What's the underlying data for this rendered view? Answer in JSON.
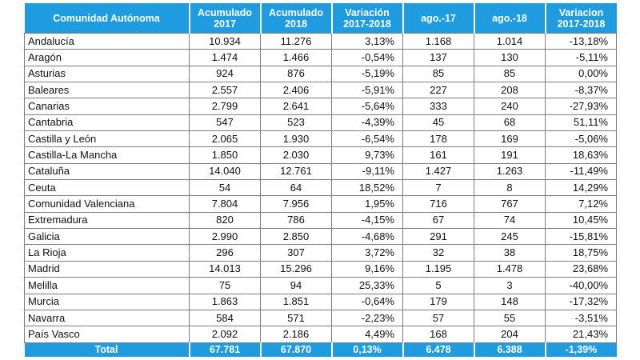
{
  "header": {
    "region": [
      "Comunidad Autónoma"
    ],
    "acum2017": [
      "Acumulado",
      "2017"
    ],
    "acum2018": [
      "Acumulado",
      "2018"
    ],
    "var_acum": [
      "Variación",
      "2017-2018"
    ],
    "ago17": [
      "ago.-17"
    ],
    "ago18": [
      "ago.-18"
    ],
    "var_ago": [
      "Variacion",
      "2017-2018"
    ]
  },
  "rows": [
    [
      "Andalucía",
      "10.934",
      "11.276",
      "3,13%",
      "1.168",
      "1.014",
      "-13,18%"
    ],
    [
      "Aragón",
      "1.474",
      "1.466",
      "-0,54%",
      "137",
      "130",
      "-5,11%"
    ],
    [
      "Asturias",
      "924",
      "876",
      "-5,19%",
      "85",
      "85",
      "0,00%"
    ],
    [
      "Baleares",
      "2.557",
      "2.406",
      "-5,91%",
      "227",
      "208",
      "-8,37%"
    ],
    [
      "Canarias",
      "2.799",
      "2.641",
      "-5,64%",
      "333",
      "240",
      "-27,93%"
    ],
    [
      "Cantabria",
      "547",
      "523",
      "-4,39%",
      "45",
      "68",
      "51,11%"
    ],
    [
      "Castilla y León",
      "2.065",
      "1.930",
      "-6,54%",
      "178",
      "169",
      "-5,06%"
    ],
    [
      "Castilla-La Mancha",
      "1.850",
      "2.030",
      "9,73%",
      "161",
      "191",
      "18,63%"
    ],
    [
      "Cataluña",
      "14.040",
      "12.761",
      "-9,11%",
      "1.427",
      "1.263",
      "-11,49%"
    ],
    [
      "Ceuta",
      "54",
      "64",
      "18,52%",
      "7",
      "8",
      "14,29%"
    ],
    [
      "Comunidad Valenciana",
      "7.804",
      "7.956",
      "1,95%",
      "716",
      "767",
      "7,12%"
    ],
    [
      "Extremadura",
      "820",
      "786",
      "-4,15%",
      "67",
      "74",
      "10,45%"
    ],
    [
      "Galicia",
      "2.990",
      "2.850",
      "-4,68%",
      "291",
      "245",
      "-15,81%"
    ],
    [
      "La Rioja",
      "296",
      "307",
      "3,72%",
      "32",
      "38",
      "18,75%"
    ],
    [
      "Madrid",
      "14.013",
      "15.296",
      "9,16%",
      "1.195",
      "1.478",
      "23,68%"
    ],
    [
      "Melilla",
      "75",
      "94",
      "25,33%",
      "5",
      "3",
      "-40,00%"
    ],
    [
      "Murcia",
      "1.863",
      "1.851",
      "-0,64%",
      "179",
      "148",
      "-17,32%"
    ],
    [
      "Navarra",
      "584",
      "571",
      "-2,23%",
      "57",
      "55",
      "-3,51%"
    ],
    [
      "País Vasco",
      "2.092",
      "2.186",
      "4,49%",
      "168",
      "204",
      "21,43%"
    ]
  ],
  "total": [
    "Total",
    "67.781",
    "67.870",
    "0,13%",
    "6.478",
    "6.388",
    "-1,39%"
  ],
  "colors": {
    "header_bg": "#1f9ce0",
    "header_text": "#ffffff",
    "grid": "#7f7f7f"
  }
}
